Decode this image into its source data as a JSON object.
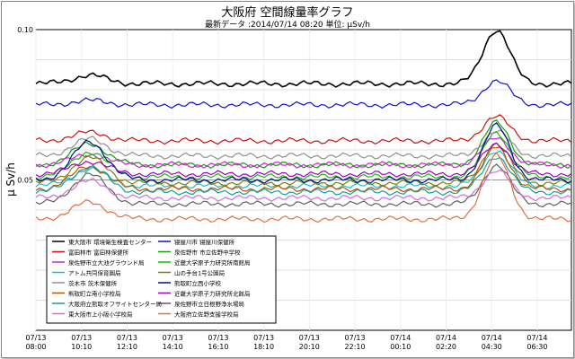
{
  "chart_data": {
    "type": "line",
    "title": "大阪府 空間線量率グラフ",
    "subtitle": "最新データ :2014/07/14 08:20 単位: μSv/h",
    "ylabel": "μ Sv/h",
    "ylim": [
      0.0,
      0.1
    ],
    "yticks": [
      "0.10",
      "0.05"
    ],
    "grid": true,
    "legend_position": "bottom-left",
    "xticks": [
      {
        "date": "07/13",
        "time": "08:00"
      },
      {
        "date": "07/13",
        "time": "10:10"
      },
      {
        "date": "07/13",
        "time": "12:10"
      },
      {
        "date": "07/13",
        "time": "14:10"
      },
      {
        "date": "07/13",
        "time": "16:10"
      },
      {
        "date": "07/13",
        "time": "18:10"
      },
      {
        "date": "07/13",
        "time": "20:10"
      },
      {
        "date": "07/13",
        "time": "22:10"
      },
      {
        "date": "07/14",
        "time": "00:10"
      },
      {
        "date": "07/14",
        "time": "02:20"
      },
      {
        "date": "07/14",
        "time": "04:30"
      },
      {
        "date": "07/14",
        "time": "06:30"
      }
    ],
    "series": [
      {
        "name": "東大阪市 環境衛生検査センター",
        "color": "#000000",
        "base": 0.082,
        "peak": 0.1,
        "amp": 0.004
      },
      {
        "name": "寝屋川市 寝屋川保健所",
        "color": "#1010d0",
        "base": 0.075,
        "peak": 0.083,
        "amp": 0.002
      },
      {
        "name": "富田林市 富田林保健所",
        "color": "#d01010",
        "base": 0.063,
        "peak": 0.071,
        "amp": 0.004
      },
      {
        "name": "泉佐野市 市立佐野中学校",
        "color": "#10a010",
        "base": 0.055,
        "peak": 0.069,
        "amp": 0.01
      },
      {
        "name": "泉佐野市立大池グラウンド局",
        "color": "#d020d0",
        "base": 0.055,
        "peak": 0.064,
        "amp": 0.005
      },
      {
        "name": "近畿大学原子力研究所南館局",
        "color": "#10c010",
        "base": 0.051,
        "peak": 0.066,
        "amp": 0.012
      },
      {
        "name": "アトム共同保育園局",
        "color": "#10c0d0",
        "base": 0.048,
        "peak": 0.06,
        "amp": 0.008
      },
      {
        "name": "山の手台1号公園局",
        "color": "#808000",
        "base": 0.049,
        "peak": 0.062,
        "amp": 0.012
      },
      {
        "name": "茨木市 茨木保健所",
        "color": "#909090",
        "base": 0.058,
        "peak": 0.066,
        "amp": 0.008
      },
      {
        "name": "熊取町立西小学校",
        "color": "#001080",
        "base": 0.05,
        "peak": 0.068,
        "amp": 0.018
      },
      {
        "name": "熊取町立南小学校局",
        "color": "#c05000",
        "base": 0.047,
        "peak": 0.061,
        "amp": 0.011
      },
      {
        "name": "近畿大学原子力研究所北館局",
        "color": "#a000c0",
        "base": 0.052,
        "peak": 0.062,
        "amp": 0.006
      },
      {
        "name": "大阪府立熊取オフサイトセンター局",
        "color": "#10a0a0",
        "base": 0.046,
        "peak": 0.058,
        "amp": 0.012
      },
      {
        "name": "泉佐野市立日根野浄水場局",
        "color": "#606060",
        "base": 0.042,
        "peak": 0.055,
        "amp": 0.014
      },
      {
        "name": "東大阪市上小阪小学校局",
        "color": "#d070d0",
        "base": 0.044,
        "peak": 0.053,
        "amp": 0.008
      },
      {
        "name": "大阪府立佐野支援学校局",
        "color": "#e07040",
        "base": 0.037,
        "peak": 0.058,
        "amp": 0.008
      }
    ]
  }
}
